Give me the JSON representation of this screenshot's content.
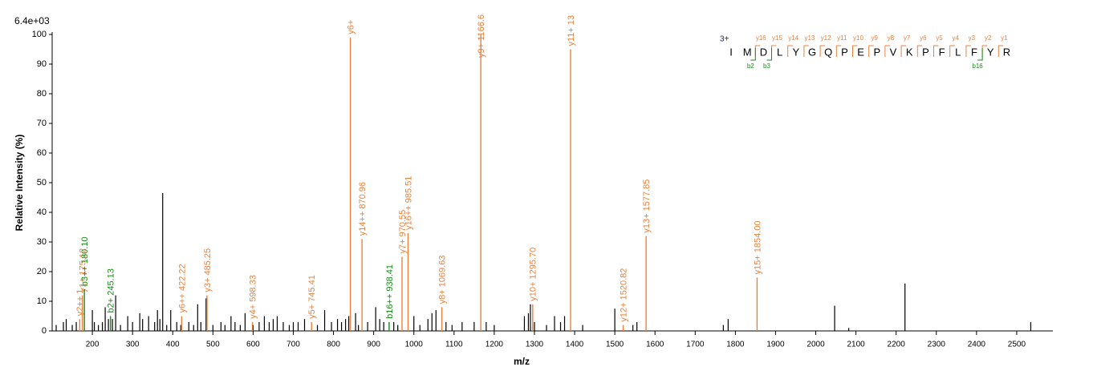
{
  "chart_data": {
    "type": "stem",
    "scale_label": "6.4e+03",
    "xlabel": "m/z",
    "ylabel": "Relative Intensity (%)",
    "xlim": [
      100,
      2590
    ],
    "xticks": [
      200,
      300,
      400,
      500,
      600,
      700,
      800,
      900,
      1000,
      1100,
      1200,
      1300,
      1400,
      1500,
      1600,
      1700,
      1800,
      1900,
      2000,
      2100,
      2200,
      2300,
      2400,
      2500
    ],
    "ylim": [
      0,
      100
    ],
    "yticks": [
      0,
      10,
      20,
      30,
      40,
      50,
      60,
      70,
      80,
      90,
      100
    ],
    "peak_color": "#000000",
    "peaks": {
      "x": [
        110,
        128,
        135,
        150,
        160,
        200,
        205,
        215,
        225,
        232,
        240,
        250,
        258,
        270,
        288,
        300,
        318,
        325,
        340,
        355,
        362,
        368,
        375,
        385,
        395,
        410,
        420,
        440,
        452,
        462,
        470,
        483,
        500,
        520,
        530,
        545,
        555,
        568,
        580,
        600,
        615,
        628,
        640,
        650,
        660,
        675,
        690,
        700,
        712,
        728,
        760,
        778,
        795,
        810,
        820,
        830,
        838,
        855,
        862,
        885,
        905,
        915,
        925,
        950,
        960,
        1000,
        1015,
        1035,
        1045,
        1055,
        1080,
        1095,
        1120,
        1150,
        1180,
        1200,
        1275,
        1285,
        1290,
        1300,
        1330,
        1350,
        1365,
        1375,
        1420,
        1500,
        1545,
        1555,
        1770,
        1782,
        2047,
        2082,
        2222,
        2535
      ],
      "values": [
        2,
        3,
        4,
        2,
        3,
        7,
        3,
        2,
        3,
        8,
        4,
        4,
        12,
        2,
        5,
        3,
        6,
        4,
        5,
        3,
        7,
        4,
        46.5,
        2,
        7,
        3,
        2,
        3,
        2,
        9,
        3,
        11,
        2,
        3,
        2,
        5,
        3,
        2,
        6,
        2,
        3,
        5,
        3,
        4,
        5,
        3,
        2,
        3,
        3,
        4,
        2,
        7,
        3,
        4,
        3,
        4,
        5,
        6,
        2,
        3,
        8,
        4,
        3,
        3,
        2,
        5,
        2,
        4,
        6,
        7,
        3,
        2,
        3,
        3,
        3,
        2,
        5,
        6,
        9,
        3,
        2,
        5,
        3,
        5,
        2,
        7.5,
        2,
        3,
        2,
        4,
        8.5,
        1,
        16,
        3
      ]
    },
    "annotated": [
      {
        "label": "y2++ 1",
        "x": 168.6,
        "value": 4,
        "color": "#e8823e"
      },
      {
        "label": "y1+ 175.12",
        "x": 175.12,
        "value": 12,
        "color": "#e8823e"
      },
      {
        "label": "b3++ 180.10",
        "x": 180.1,
        "value": 14,
        "color": "#1a8a1a"
      },
      {
        "label": "b2+ 245.13",
        "x": 245.13,
        "value": 5,
        "color": "#1a8a1a"
      },
      {
        "label": "y6++ 422.22",
        "x": 422.22,
        "value": 5,
        "color": "#e8823e"
      },
      {
        "label": "y3+ 485.25",
        "x": 485.25,
        "value": 12,
        "color": "#e8823e"
      },
      {
        "label": "y4+ 598.33",
        "x": 598.33,
        "value": 3,
        "color": "#e8823e"
      },
      {
        "label": "y5+ 745.41",
        "x": 745.41,
        "value": 3,
        "color": "#e8823e"
      },
      {
        "label": "y6+",
        "x": 842,
        "value": 99,
        "color": "#e8823e"
      },
      {
        "label": "y14++ 870.96",
        "x": 870.96,
        "value": 31,
        "color": "#e8823e"
      },
      {
        "label": "b16++ 938.41",
        "x": 938.41,
        "value": 3,
        "color": "#1a8a1a"
      },
      {
        "label": "y7+ 970.55",
        "x": 970.55,
        "value": 25,
        "color": "#e8823e"
      },
      {
        "label": "y16++ 985.51",
        "x": 985.51,
        "value": 33,
        "color": "#e8823e"
      },
      {
        "label": "y8+ 1069.63",
        "x": 1069.63,
        "value": 8,
        "color": "#e8823e"
      },
      {
        "label": "y9+ 1166.6",
        "x": 1166.6,
        "value": 100,
        "color": "#e8823e"
      },
      {
        "label": "y10+ 1295.70",
        "x": 1295.7,
        "value": 9,
        "color": "#e8823e"
      },
      {
        "label": "y11+ 13",
        "x": 1390,
        "value": 95,
        "color": "#e8823e"
      },
      {
        "label": "y12+ 1520.82",
        "x": 1520.82,
        "value": 2,
        "color": "#e8823e"
      },
      {
        "label": "y13+ 1577.85",
        "x": 1577.85,
        "value": 32,
        "color": "#e8823e"
      },
      {
        "label": "y15+ 1854.00",
        "x": 1854.0,
        "value": 18,
        "color": "#e8823e"
      }
    ],
    "sequence": {
      "charge": "3+",
      "residues": [
        "I",
        "M",
        "D",
        "L",
        "Y",
        "G",
        "Q",
        "P",
        "E",
        "P",
        "V",
        "K",
        "P",
        "F",
        "L",
        "F",
        "Y",
        "R"
      ],
      "cleavage_y": [
        null,
        "y16",
        "y15",
        "y14",
        "y13",
        "y12",
        "y11",
        "y10",
        "y9",
        "y8",
        "y7",
        "y6",
        "y5",
        "y4",
        "y3",
        "y2",
        "y1"
      ],
      "cleavage_b": [
        null,
        "b2",
        "b3",
        null,
        null,
        null,
        null,
        null,
        null,
        null,
        null,
        null,
        null,
        null,
        null,
        "b16",
        null
      ],
      "y_color": "#e8823e",
      "b_color": "#1a8a1a",
      "charge_color": "#1a237e"
    }
  }
}
